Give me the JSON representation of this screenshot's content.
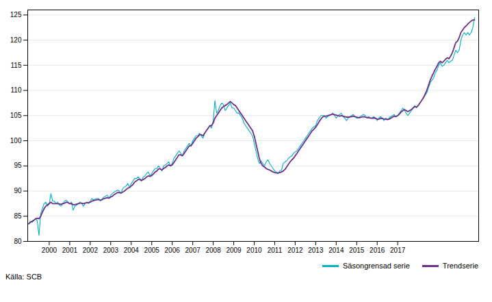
{
  "chart_data": {
    "type": "line",
    "x": [
      1999,
      1999.0833333333333,
      1999.1666666666667,
      1999.25,
      1999.3333333333333,
      1999.4166666666667,
      1999.5,
      1999.5833333333333,
      1999.6666666666667,
      1999.75,
      1999.8333333333333,
      1999.9166666666667,
      2000,
      2000.0833333333333,
      2000.1666666666667,
      2000.25,
      2000.3333333333333,
      2000.4166666666667,
      2000.5,
      2000.5833333333333,
      2000.6666666666667,
      2000.75,
      2000.8333333333333,
      2000.9166666666667,
      2001,
      2001.0833333333333,
      2001.1666666666667,
      2001.25,
      2001.3333333333333,
      2001.4166666666667,
      2001.5,
      2001.5833333333333,
      2001.6666666666667,
      2001.75,
      2001.8333333333333,
      2001.9166666666667,
      2002,
      2002.0833333333333,
      2002.1666666666667,
      2002.25,
      2002.3333333333333,
      2002.4166666666667,
      2002.5,
      2002.5833333333333,
      2002.6666666666667,
      2002.75,
      2002.8333333333333,
      2002.9166666666667,
      2003,
      2003.0833333333333,
      2003.1666666666667,
      2003.25,
      2003.3333333333333,
      2003.4166666666667,
      2003.5,
      2003.5833333333333,
      2003.6666666666667,
      2003.75,
      2003.8333333333333,
      2003.9166666666667,
      2004,
      2004.0833333333333,
      2004.1666666666667,
      2004.25,
      2004.3333333333333,
      2004.4166666666667,
      2004.5,
      2004.5833333333333,
      2004.6666666666667,
      2004.75,
      2004.8333333333333,
      2004.9166666666667,
      2005,
      2005.0833333333333,
      2005.1666666666667,
      2005.25,
      2005.3333333333333,
      2005.4166666666667,
      2005.5,
      2005.5833333333333,
      2005.6666666666667,
      2005.75,
      2005.8333333333333,
      2005.9166666666667,
      2006,
      2006.0833333333333,
      2006.1666666666667,
      2006.25,
      2006.3333333333333,
      2006.4166666666667,
      2006.5,
      2006.5833333333333,
      2006.6666666666667,
      2006.75,
      2006.8333333333333,
      2006.9166666666667,
      2007,
      2007.0833333333333,
      2007.1666666666667,
      2007.25,
      2007.3333333333333,
      2007.4166666666667,
      2007.5,
      2007.5833333333333,
      2007.6666666666667,
      2007.75,
      2007.8333333333333,
      2007.9166666666667,
      2008,
      2008.0833333333333,
      2008.1666666666667,
      2008.25,
      2008.3333333333333,
      2008.4166666666667,
      2008.5,
      2008.5833333333333,
      2008.6666666666667,
      2008.75,
      2008.8333333333333,
      2008.9166666666667,
      2009,
      2009.0833333333333,
      2009.1666666666667,
      2009.25,
      2009.3333333333333,
      2009.4166666666667,
      2009.5,
      2009.5833333333333,
      2009.6666666666667,
      2009.75,
      2009.8333333333333,
      2009.9166666666667,
      2010,
      2010.0833333333333,
      2010.1666666666667,
      2010.25,
      2010.3333333333333,
      2010.4166666666667,
      2010.5,
      2010.5833333333333,
      2010.6666666666667,
      2010.75,
      2010.8333333333333,
      2010.9166666666667,
      2011,
      2011.0833333333333,
      2011.1666666666667,
      2011.25,
      2011.3333333333333,
      2011.4166666666667,
      2011.5,
      2011.5833333333333,
      2011.6666666666667,
      2011.75,
      2011.8333333333333,
      2011.9166666666667,
      2012,
      2012.0833333333333,
      2012.1666666666667,
      2012.25,
      2012.3333333333333,
      2012.4166666666667,
      2012.5,
      2012.5833333333333,
      2012.6666666666667,
      2012.75,
      2012.8333333333333,
      2012.9166666666667,
      2013,
      2013.0833333333333,
      2013.1666666666667,
      2013.25,
      2013.3333333333333,
      2013.4166666666667,
      2013.5,
      2013.5833333333333,
      2013.6666666666667,
      2013.75,
      2013.8333333333333,
      2013.9166666666667,
      2014,
      2014.0833333333333,
      2014.1666666666667,
      2014.25,
      2014.3333333333333,
      2014.4166666666667,
      2014.5,
      2014.5833333333333,
      2014.6666666666667,
      2014.75,
      2014.8333333333333,
      2014.9166666666667,
      2015,
      2015.0833333333333,
      2015.1666666666667,
      2015.25,
      2015.3333333333333,
      2015.4166666666667,
      2015.5,
      2015.5833333333333,
      2015.6666666666667,
      2015.75,
      2015.8333333333333,
      2015.9166666666667,
      2016,
      2016.0833333333333,
      2016.1666666666667,
      2016.25,
      2016.3333333333333,
      2016.4166666666667,
      2016.5,
      2016.5833333333333,
      2016.6666666666667,
      2016.75,
      2016.8333333333333,
      2016.9166666666667,
      2017,
      2017.0833333333333,
      2017.1666666666667,
      2017.25,
      2017.3333333333333,
      2017.4166666666667,
      2017.5,
      2017.5833333333333,
      2017.6666666666667,
      2017.75,
      2017.8333333333333,
      2017.9166666666667,
      2018,
      2018.0833333333333,
      2018.1666666666667,
      2018.25,
      2018.3333333333333,
      2018.4166666666667,
      2018.5,
      2018.5833333333333,
      2018.6666666666667,
      2018.75,
      2018.8333333333333,
      2018.9166666666667,
      2019,
      2019.0833333333333,
      2019.1666666666667,
      2019.25,
      2019.3333333333333,
      2019.4166666666667,
      2019.5,
      2019.5833333333333,
      2019.6666666666667,
      2019.75,
      2019.8333333333333,
      2019.9166666666667,
      2020,
      2020.0833333333333,
      2020.1666666666667,
      2020.25,
      2020.3333333333333,
      2020.4166666666667,
      2020.5,
      2020.5833333333333,
      2020.6666666666667,
      2020.75
    ],
    "series": [
      {
        "name": "Säsongrensad serie",
        "color": "#00B0C8",
        "values": [
          83.5,
          84.0,
          83.8,
          84.2,
          84.5,
          84.0,
          81.2,
          85.5,
          86.5,
          87.5,
          87.8,
          87.0,
          87.5,
          89.5,
          88.0,
          88.0,
          87.5,
          87.8,
          87.2,
          87.0,
          87.5,
          88.0,
          88.2,
          87.8,
          87.5,
          87.8,
          86.2,
          87.0,
          87.2,
          87.5,
          87.8,
          87.5,
          87.0,
          87.5,
          87.8,
          87.5,
          88.0,
          88.5,
          88.2,
          88.5,
          88.5,
          88.5,
          88.0,
          88.5,
          88.8,
          89.0,
          89.2,
          88.5,
          89.2,
          89.5,
          89.8,
          90.0,
          90.2,
          90.0,
          89.5,
          90.5,
          90.8,
          91.0,
          91.5,
          90.8,
          91.5,
          92.0,
          92.5,
          92.5,
          92.8,
          92.5,
          92.0,
          92.8,
          93.0,
          93.5,
          93.8,
          93.0,
          93.5,
          94.0,
          94.5,
          94.5,
          95.0,
          94.5,
          94.0,
          95.0,
          95.2,
          95.5,
          95.8,
          95.0,
          95.5,
          96.5,
          97.0,
          97.5,
          98.0,
          97.5,
          97.0,
          98.0,
          98.5,
          99.0,
          99.5,
          99.0,
          100.0,
          100.5,
          101.0,
          101.0,
          101.5,
          101.0,
          100.5,
          101.5,
          102.0,
          102.5,
          103.0,
          102.5,
          104.0,
          108.0,
          105.5,
          106.0,
          107.0,
          107.5,
          107.2,
          106.0,
          106.5,
          107.0,
          107.5,
          106.5,
          106.5,
          106.0,
          105.5,
          105.5,
          105.0,
          104.5,
          103.5,
          103.0,
          102.5,
          102.0,
          101.5,
          101.0,
          99.5,
          98.0,
          96.5,
          95.5,
          96.0,
          95.5,
          95.0,
          95.8,
          96.2,
          95.5,
          95.0,
          94.5,
          94.0,
          93.8,
          93.5,
          94.0,
          94.2,
          95.5,
          95.8,
          96.0,
          96.5,
          96.8,
          97.0,
          97.5,
          97.8,
          98.0,
          98.5,
          99.0,
          99.5,
          100.0,
          100.5,
          101.0,
          101.5,
          102.0,
          102.5,
          102.8,
          103.0,
          104.0,
          104.5,
          105.0,
          105.0,
          105.0,
          104.5,
          104.8,
          105.0,
          105.2,
          105.5,
          105.0,
          104.5,
          105.0,
          105.2,
          105.5,
          104.8,
          104.5,
          104.0,
          104.5,
          104.8,
          105.0,
          105.2,
          104.8,
          104.5,
          104.5,
          104.8,
          105.0,
          105.2,
          105.0,
          104.5,
          104.8,
          104.5,
          104.5,
          104.8,
          104.5,
          104.0,
          104.5,
          104.8,
          104.5,
          104.0,
          104.5,
          104.2,
          104.5,
          104.8,
          105.0,
          105.2,
          104.8,
          105.0,
          105.5,
          106.0,
          106.5,
          106.0,
          105.5,
          105.0,
          105.5,
          106.0,
          106.5,
          107.0,
          106.5,
          107.0,
          107.5,
          108.0,
          108.5,
          109.0,
          109.5,
          110.5,
          111.5,
          112.0,
          112.5,
          113.5,
          114.0,
          115.0,
          115.5,
          114.8,
          115.0,
          115.5,
          116.0,
          115.5,
          115.8,
          116.0,
          117.0,
          118.0,
          117.5,
          118.0,
          120.0,
          121.0,
          121.5,
          121.0,
          121.5,
          121.0,
          121.5,
          122.5,
          124.5
        ]
      },
      {
        "name": "Trendserie",
        "color": "#6B2D8B",
        "values": [
          83.5,
          83.8,
          84.0,
          84.2,
          84.5,
          84.6,
          84.5,
          85.0,
          85.8,
          86.5,
          87.0,
          87.3,
          87.5,
          87.8,
          87.5,
          87.5,
          87.5,
          87.5,
          87.4,
          87.4,
          87.5,
          87.6,
          87.8,
          87.7,
          87.5,
          87.5,
          87.3,
          87.3,
          87.4,
          87.5,
          87.6,
          87.6,
          87.5,
          87.6,
          87.7,
          87.7,
          87.8,
          88.0,
          88.1,
          88.2,
          88.3,
          88.3,
          88.2,
          88.3,
          88.5,
          88.6,
          88.7,
          88.6,
          88.8,
          89.0,
          89.3,
          89.5,
          89.7,
          89.7,
          89.6,
          89.8,
          90.0,
          90.3,
          90.6,
          90.7,
          91.0,
          91.3,
          91.8,
          92.0,
          92.3,
          92.3,
          92.1,
          92.3,
          92.5,
          92.8,
          93.0,
          92.9,
          93.1,
          93.4,
          93.8,
          94.0,
          94.4,
          94.4,
          94.2,
          94.5,
          94.7,
          95.0,
          95.2,
          95.0,
          95.2,
          95.7,
          96.2,
          96.7,
          97.2,
          97.2,
          97.0,
          97.5,
          98.0,
          98.5,
          99.0,
          99.0,
          99.5,
          100.0,
          100.5,
          100.8,
          101.2,
          101.2,
          101.0,
          101.5,
          102.0,
          102.5,
          103.0,
          103.0,
          103.5,
          104.5,
          105.0,
          105.5,
          106.0,
          106.5,
          106.8,
          107.0,
          107.2,
          107.5,
          107.8,
          107.5,
          107.2,
          107.0,
          106.5,
          106.0,
          105.5,
          105.0,
          104.5,
          104.0,
          103.5,
          103.0,
          102.5,
          102.0,
          101.0,
          99.5,
          98.0,
          96.5,
          95.5,
          95.0,
          94.8,
          94.5,
          94.3,
          94.2,
          94.0,
          93.8,
          93.7,
          93.6,
          93.6,
          93.7,
          93.8,
          94.0,
          94.3,
          94.8,
          95.3,
          95.8,
          96.2,
          96.5,
          97.0,
          97.5,
          98.0,
          98.5,
          99.0,
          99.5,
          100.0,
          100.5,
          101.0,
          101.5,
          102.0,
          102.3,
          102.7,
          103.2,
          103.8,
          104.3,
          104.7,
          104.9,
          104.9,
          105.0,
          105.1,
          105.2,
          105.3,
          105.2,
          105.1,
          105.0,
          104.9,
          105.0,
          104.9,
          104.8,
          104.7,
          104.7,
          104.7,
          104.8,
          104.9,
          104.8,
          104.7,
          104.6,
          104.6,
          104.7,
          104.8,
          104.7,
          104.6,
          104.6,
          104.5,
          104.5,
          104.5,
          104.5,
          104.3,
          104.3,
          104.4,
          104.4,
          104.3,
          104.3,
          104.2,
          104.3,
          104.5,
          104.7,
          104.9,
          104.8,
          105.0,
          105.3,
          105.7,
          106.0,
          106.2,
          106.0,
          105.8,
          106.0,
          106.2,
          106.5,
          106.8,
          106.7,
          107.0,
          107.5,
          108.0,
          108.5,
          109.2,
          110.0,
          111.0,
          112.0,
          112.8,
          113.5,
          114.2,
          114.8,
          115.5,
          115.8,
          115.5,
          115.8,
          116.2,
          116.5,
          116.3,
          116.8,
          117.5,
          118.5,
          119.5,
          119.8,
          120.5,
          121.5,
          122.0,
          122.5,
          122.8,
          123.2,
          123.5,
          123.8,
          124.0,
          124.0
        ]
      }
    ],
    "xlim": [
      1998.95,
      2020.95
    ],
    "xticks": [
      2000,
      2001,
      2002,
      2003,
      2004,
      2005,
      2006,
      2007,
      2008,
      2009,
      2010,
      2011,
      2012,
      2013,
      2014,
      2015,
      2016,
      2017
    ],
    "ylim": [
      80,
      126
    ],
    "yticks": [
      80,
      85,
      90,
      95,
      100,
      105,
      110,
      115,
      120,
      125
    ],
    "grid": true,
    "legend": "lower right",
    "annotations": [
      "Källa: SCB"
    ]
  }
}
